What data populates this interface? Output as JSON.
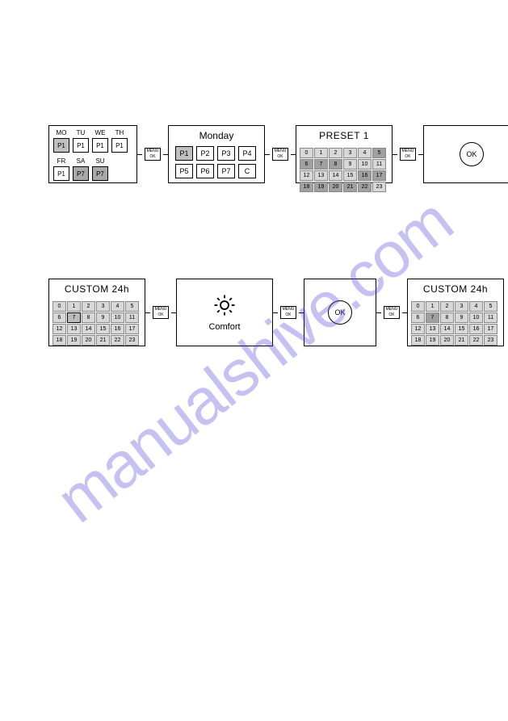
{
  "watermark": "manualshive.com",
  "menu_btn": {
    "line1": "MENU",
    "line2": "OK"
  },
  "row1": {
    "panelA": {
      "days": [
        "MO",
        "TU",
        "WE",
        "TH",
        "FR",
        "SA",
        "SU"
      ],
      "cells": [
        {
          "label": "P1",
          "sel": true
        },
        {
          "label": "P1"
        },
        {
          "label": "P1"
        },
        {
          "label": "P1"
        },
        {
          "label": "P1"
        },
        {
          "label": "P7",
          "dark": true
        },
        {
          "label": "P7",
          "dark": true
        }
      ]
    },
    "panelB": {
      "title": "Monday",
      "cells": [
        {
          "label": "P1",
          "sel": true
        },
        {
          "label": "P2"
        },
        {
          "label": "P3"
        },
        {
          "label": "P4"
        },
        {
          "label": "P5"
        },
        {
          "label": "P6"
        },
        {
          "label": "P7"
        },
        {
          "label": "C"
        }
      ]
    },
    "panelC": {
      "title": "PRESET 1",
      "hours": [
        0,
        1,
        2,
        3,
        4,
        5,
        6,
        7,
        8,
        9,
        10,
        11,
        12,
        13,
        14,
        15,
        16,
        17,
        18,
        19,
        20,
        21,
        22,
        23
      ],
      "on": [
        5,
        6,
        7,
        8,
        16,
        17,
        18,
        19,
        20,
        21,
        22
      ]
    },
    "panelD": {
      "ok": "OK"
    }
  },
  "row2": {
    "panelE1": {
      "title": "CUSTOM 24h",
      "hours": [
        0,
        1,
        2,
        3,
        4,
        5,
        6,
        7,
        8,
        9,
        10,
        11,
        12,
        13,
        14,
        15,
        16,
        17,
        18,
        19,
        20,
        21,
        22,
        23
      ],
      "sel": 7
    },
    "panelF": {
      "label": "Comfort"
    },
    "panelG": {
      "ok": "OK"
    },
    "panelE2": {
      "title": "CUSTOM 24h",
      "hours": [
        0,
        1,
        2,
        3,
        4,
        5,
        6,
        7,
        8,
        9,
        10,
        11,
        12,
        13,
        14,
        15,
        16,
        17,
        18,
        19,
        20,
        21,
        22,
        23
      ],
      "on": [
        7
      ]
    }
  },
  "colors": {
    "cell_bg": "#d8d8d8",
    "cell_on": "#a0a0a0",
    "sel_bg": "#c0c0c0",
    "watermark": "rgba(90,80,220,0.35)"
  }
}
